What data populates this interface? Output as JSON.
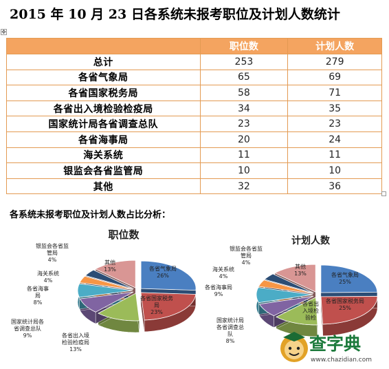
{
  "page": {
    "title": "2015 年 10 月 23 日各系统未报考职位及计划人数统计",
    "anchor_glyph": "✥",
    "section_heading": "各系统未报考职位及计划人数占比分析："
  },
  "table": {
    "headers": [
      "",
      "职位数",
      "计划人数"
    ],
    "rows": [
      {
        "name": "总计",
        "positions": "253",
        "plan": "279"
      },
      {
        "name": "各省气象局",
        "positions": "65",
        "plan": "69"
      },
      {
        "name": "各省国家税务局",
        "positions": "58",
        "plan": "71"
      },
      {
        "name": "各省出入境检验检疫局",
        "positions": "34",
        "plan": "35"
      },
      {
        "name": "国家统计局各省调查总队",
        "positions": "23",
        "plan": "23"
      },
      {
        "name": "各省海事局",
        "positions": "20",
        "plan": "24"
      },
      {
        "name": "海关系统",
        "positions": "11",
        "plan": "11"
      },
      {
        "name": "银监会各省监管局",
        "positions": "10",
        "plan": "10"
      },
      {
        "name": "其他",
        "positions": "32",
        "plan": "36"
      }
    ]
  },
  "chart_data": [
    {
      "type": "pie",
      "title": "职位数",
      "slices": [
        {
          "label": "各省气象局",
          "pct": 26,
          "color": "#4a7fc1"
        },
        {
          "label": "各省国家税务局",
          "pct": 23,
          "color": "#c0504d"
        },
        {
          "label": "各省出入境检验检疫局",
          "pct": 13,
          "color": "#9bbb59"
        },
        {
          "label": "国家统计局各省调查总队",
          "pct": 9,
          "color": "#8064a2"
        },
        {
          "label": "各省海事局",
          "pct": 8,
          "color": "#4bacc6"
        },
        {
          "label": "海关系统",
          "pct": 4,
          "color": "#f79646"
        },
        {
          "label": "银监会各省监管局",
          "pct": 4,
          "color": "#2c4d75"
        },
        {
          "label": "其他",
          "pct": 13,
          "color": "#d99694"
        }
      ],
      "labels": [
        {
          "lines": [
            "各省气象局",
            "26%"
          ]
        },
        {
          "lines": [
            "各省国家税务",
            "局",
            "23%"
          ]
        },
        {
          "lines": [
            "各省出入境",
            "检验检疫局",
            "13%"
          ]
        },
        {
          "lines": [
            "国家统计局各",
            "省调查总队",
            "9%"
          ]
        },
        {
          "lines": [
            "各省海事",
            "局",
            "8%"
          ]
        },
        {
          "lines": [
            "海关系统",
            "4%"
          ]
        },
        {
          "lines": [
            "银监会各省监",
            "管局",
            "4%"
          ]
        },
        {
          "lines": [
            "其他",
            "13%"
          ]
        }
      ]
    },
    {
      "type": "pie",
      "title": "计划人数",
      "slices": [
        {
          "label": "各省气象局",
          "pct": 25,
          "color": "#4a7fc1"
        },
        {
          "label": "各省国家税务局",
          "pct": 25,
          "color": "#c0504d"
        },
        {
          "label": "各省出入境检验检疫局",
          "pct": 13,
          "color": "#9bbb59"
        },
        {
          "label": "国家统计局各省调查总队",
          "pct": 8,
          "color": "#8064a2"
        },
        {
          "label": "各省海事局",
          "pct": 9,
          "color": "#4bacc6"
        },
        {
          "label": "海关系统",
          "pct": 4,
          "color": "#f79646"
        },
        {
          "label": "银监会各省监管局",
          "pct": 4,
          "color": "#2c4d75"
        },
        {
          "label": "其他",
          "pct": 13,
          "color": "#d99694"
        }
      ],
      "labels": [
        {
          "lines": [
            "各省气象局",
            "25%"
          ]
        },
        {
          "lines": [
            "各省国家税务局",
            "25%"
          ]
        },
        {
          "lines": [
            "各省出",
            "入境检",
            "验检"
          ]
        },
        {
          "lines": [
            "国家统计局",
            "各省调查总",
            "队",
            "8%"
          ]
        },
        {
          "lines": [
            "各省海事局",
            "9%"
          ]
        },
        {
          "lines": [
            "海关系统",
            "4%"
          ]
        },
        {
          "lines": [
            "银监会各省监",
            "管局",
            "4%"
          ]
        },
        {
          "lines": [
            "其他",
            "13%"
          ]
        }
      ]
    }
  ],
  "watermark": {
    "text": "查字典",
    "url": "www.chazidian.com"
  }
}
